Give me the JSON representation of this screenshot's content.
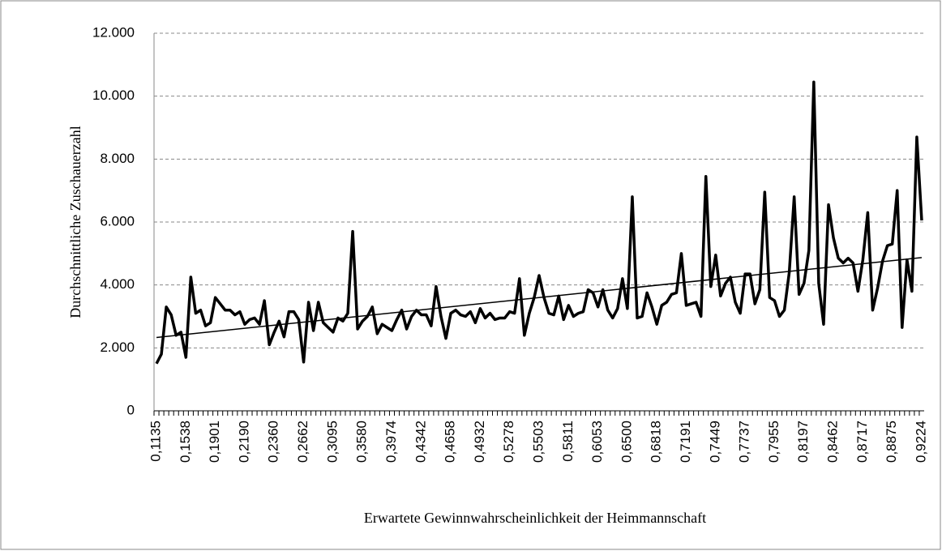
{
  "chart_data": {
    "type": "line",
    "x_label": "Erwartete Gewinnwahrscheinlichkeit der Heimmannschaft",
    "y_label": "Durchschnittliche Zuschauerzahl",
    "categories": [
      "0,1135",
      null,
      null,
      null,
      null,
      null,
      "0,1538",
      null,
      null,
      null,
      null,
      null,
      "0,1901",
      null,
      null,
      null,
      null,
      null,
      "0,2190",
      null,
      null,
      null,
      null,
      null,
      "0,2360",
      null,
      null,
      null,
      null,
      null,
      "0,2662",
      null,
      null,
      null,
      null,
      null,
      "0,3095",
      null,
      null,
      null,
      null,
      null,
      "0,3580",
      null,
      null,
      null,
      null,
      null,
      "0,3974",
      null,
      null,
      null,
      null,
      null,
      "0,4342",
      null,
      null,
      null,
      null,
      null,
      "0,4658",
      null,
      null,
      null,
      null,
      null,
      "0,4932",
      null,
      null,
      null,
      null,
      null,
      "0,5278",
      null,
      null,
      null,
      null,
      null,
      "0,5503",
      null,
      null,
      null,
      null,
      null,
      "0,5811",
      null,
      null,
      null,
      null,
      null,
      "0,6053",
      null,
      null,
      null,
      null,
      null,
      "0,6500",
      null,
      null,
      null,
      null,
      null,
      "0,6818",
      null,
      null,
      null,
      null,
      null,
      "0,7191",
      null,
      null,
      null,
      null,
      null,
      "0,7449",
      null,
      null,
      null,
      null,
      null,
      "0,7737",
      null,
      null,
      null,
      null,
      null,
      "0,7955",
      null,
      null,
      null,
      null,
      null,
      "0,8197",
      null,
      null,
      null,
      null,
      null,
      "0,8462",
      null,
      null,
      null,
      null,
      null,
      "0,8717",
      null,
      null,
      null,
      null,
      null,
      "0,8875",
      null,
      null,
      null,
      null,
      null,
      "0,9224"
    ],
    "series": [
      {
        "color": "#000000",
        "values": [
          1500,
          1800,
          3300,
          3050,
          2400,
          2500,
          1700,
          4250,
          3100,
          3200,
          2700,
          2800,
          3600,
          3400,
          3200,
          3200,
          3050,
          3150,
          2750,
          2900,
          2950,
          2750,
          3500,
          2100,
          2500,
          2850,
          2350,
          3150,
          3150,
          2900,
          1550,
          3450,
          2550,
          3450,
          2800,
          2650,
          2500,
          2950,
          2850,
          3100,
          5700,
          2600,
          2850,
          3000,
          3300,
          2450,
          2750,
          2650,
          2550,
          2900,
          3200,
          2600,
          3000,
          3200,
          3050,
          3050,
          2700,
          3950,
          3000,
          2300,
          3100,
          3200,
          3050,
          3000,
          3150,
          2800,
          3250,
          2950,
          3100,
          2900,
          2950,
          2950,
          3150,
          3100,
          4200,
          2400,
          3100,
          3600,
          4300,
          3600,
          3100,
          3050,
          3650,
          2900,
          3350,
          3000,
          3100,
          3150,
          3850,
          3750,
          3300,
          3850,
          3200,
          2950,
          3250,
          4200,
          3250,
          6800,
          2950,
          3000,
          3750,
          3300,
          2750,
          3350,
          3450,
          3700,
          3750,
          5000,
          3350,
          3400,
          3450,
          3000,
          7450,
          3950,
          4950,
          3650,
          4050,
          4250,
          3450,
          3100,
          4350,
          4350,
          3400,
          3850,
          6950,
          3600,
          3500,
          3000,
          3200,
          4400,
          6800,
          3700,
          4050,
          5100,
          10450,
          4050,
          2750,
          6550,
          5500,
          4850,
          4700,
          4850,
          4700,
          3800,
          4800,
          6300,
          3200,
          3900,
          4750,
          5250,
          5300,
          7000,
          2650,
          4800,
          3800,
          8700,
          6050
        ]
      }
    ],
    "trendline": {
      "color": "#000000",
      "values": [
        2330,
        4870
      ]
    },
    "ylim": [
      0,
      12000
    ],
    "yticks": [
      0,
      {
        "value": 2000,
        "label": "2.000"
      },
      {
        "value": 4000,
        "label": "4.000"
      },
      {
        "value": 6000,
        "label": "6.000"
      },
      {
        "value": 8000,
        "label": "8.000"
      },
      {
        "value": 10000,
        "label": "10.000"
      },
      {
        "value": 12000,
        "label": "12.000"
      }
    ],
    "grid": true
  }
}
